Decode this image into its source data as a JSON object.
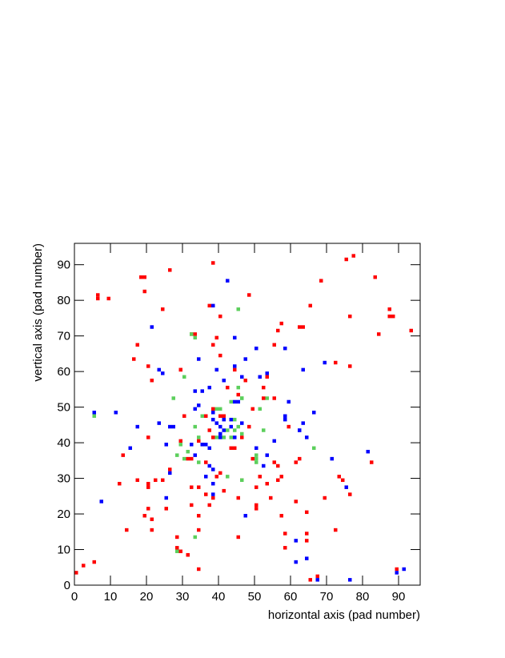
{
  "chart_data": {
    "type": "scatter",
    "x_label": "horizontal axis (pad number)",
    "y_label": "vertical axis (pad number)",
    "xlim": [
      0,
      96
    ],
    "ylim": [
      0,
      96
    ],
    "xticks": [
      0,
      10,
      20,
      30,
      40,
      50,
      60,
      70,
      80,
      90
    ],
    "yticks": [
      0,
      10,
      20,
      30,
      40,
      50,
      60,
      70,
      80,
      90
    ],
    "grid": false,
    "series": [
      {
        "color": "#ff0000",
        "x": [
          0,
          2,
          5,
          6,
          6,
          9,
          18,
          19,
          19,
          26,
          38,
          24,
          17,
          16,
          20,
          21,
          37,
          40,
          39,
          38,
          40,
          29,
          32,
          33,
          48,
          57,
          56,
          55,
          62,
          63,
          65,
          68,
          75,
          77,
          83,
          84,
          87,
          87,
          88,
          93,
          76,
          76,
          72,
          82,
          73,
          74,
          75,
          76,
          69,
          72,
          64,
          64,
          64,
          58,
          58,
          57,
          61,
          65,
          67,
          89,
          20,
          13,
          12,
          14,
          17,
          19,
          20,
          21,
          21,
          20,
          22,
          24,
          25,
          26,
          28,
          28,
          29,
          31,
          31,
          34,
          34,
          34,
          32,
          34,
          32,
          31,
          32,
          36,
          39,
          40,
          36,
          37,
          38,
          41,
          45,
          45,
          46,
          50,
          51,
          50,
          50,
          54,
          53,
          56,
          57,
          55,
          56,
          61,
          62,
          59,
          29,
          34,
          30,
          36,
          40,
          41,
          38,
          37,
          38,
          45,
          47,
          42,
          44,
          46,
          48,
          49,
          52,
          52,
          53,
          55,
          43,
          44,
          49,
          35,
          29,
          20
        ],
        "values": [
          3,
          5,
          6,
          80,
          81,
          80,
          86,
          86,
          82,
          88,
          90,
          77,
          67,
          63,
          61,
          57,
          78,
          75,
          69,
          67,
          64,
          60,
          70,
          70,
          81,
          73,
          71,
          67,
          72,
          72,
          78,
          85,
          91,
          92,
          86,
          70,
          77,
          75,
          75,
          71,
          75,
          61,
          62,
          34,
          30,
          29,
          27,
          25,
          24,
          15,
          20,
          14,
          12,
          10,
          14,
          19,
          23,
          1,
          2,
          4,
          41,
          36,
          28,
          15,
          29,
          19,
          21,
          18,
          15,
          27,
          29,
          29,
          21,
          32,
          13,
          10,
          9,
          8,
          8,
          4,
          15,
          19,
          22,
          27,
          27,
          35,
          35,
          34,
          30,
          31,
          25,
          22,
          24,
          26,
          24,
          13,
          29,
          27,
          30,
          22,
          21,
          24,
          28,
          29,
          30,
          34,
          33,
          34,
          35,
          44,
          40,
          40,
          47,
          47,
          47,
          47,
          49,
          43,
          41,
          53,
          57,
          55,
          60,
          41,
          44,
          49,
          52,
          55,
          58,
          52,
          38,
          38,
          35,
          39,
          60,
          28
        ]
      },
      {
        "color": "#0000ff",
        "x": [
          42,
          38,
          21,
          34,
          23,
          24,
          39,
          44,
          44,
          47,
          53,
          51,
          46,
          41,
          33,
          35,
          37,
          34,
          33,
          5,
          11,
          15,
          17,
          23,
          26,
          27,
          25,
          25,
          26,
          25,
          7,
          32,
          35,
          36,
          37,
          38,
          38,
          33,
          36,
          38,
          37,
          39,
          41,
          43,
          40,
          40,
          41,
          43,
          44,
          46,
          40,
          38,
          38,
          45,
          44,
          47,
          50,
          52,
          53,
          55,
          58,
          58,
          59,
          62,
          62,
          63,
          64,
          63,
          66,
          61,
          64,
          61,
          67,
          76,
          69,
          71,
          75,
          81,
          91,
          89,
          58,
          50
        ],
        "values": [
          85,
          78,
          72,
          63,
          60,
          59,
          60,
          61,
          69,
          63,
          59,
          58,
          58,
          57,
          54,
          54,
          55,
          50,
          49,
          48,
          48,
          38,
          44,
          45,
          44,
          44,
          39,
          39,
          31,
          24,
          23,
          39,
          39,
          39,
          33,
          32,
          28,
          36,
          30,
          25,
          38,
          45,
          46,
          46,
          42,
          41,
          43,
          44,
          41,
          45,
          44,
          46,
          48,
          51,
          51,
          19,
          38,
          33,
          36,
          40,
          47,
          46,
          51,
          43,
          43,
          45,
          41,
          60,
          48,
          12,
          7,
          6,
          1,
          1,
          62,
          35,
          27,
          37,
          4,
          3,
          66,
          66
        ]
      },
      {
        "color": "#5ccf5c",
        "x": [
          45,
          32,
          33,
          30,
          27,
          5,
          33,
          35,
          39,
          40,
          46,
          46,
          45,
          43,
          53,
          51,
          44,
          45,
          42,
          44,
          46,
          41,
          43,
          39,
          34,
          29,
          28,
          31,
          30,
          34,
          42,
          46,
          50,
          50,
          50,
          52,
          66,
          33,
          28
        ],
        "values": [
          77,
          70,
          69,
          58,
          52,
          47,
          44,
          47,
          49,
          49,
          52,
          52,
          55,
          51,
          52,
          49,
          46,
          44,
          43,
          43,
          42,
          41,
          41,
          41,
          41,
          39,
          36,
          37,
          35,
          34,
          30,
          29,
          35,
          34,
          36,
          43,
          38,
          13,
          9
        ]
      }
    ]
  }
}
